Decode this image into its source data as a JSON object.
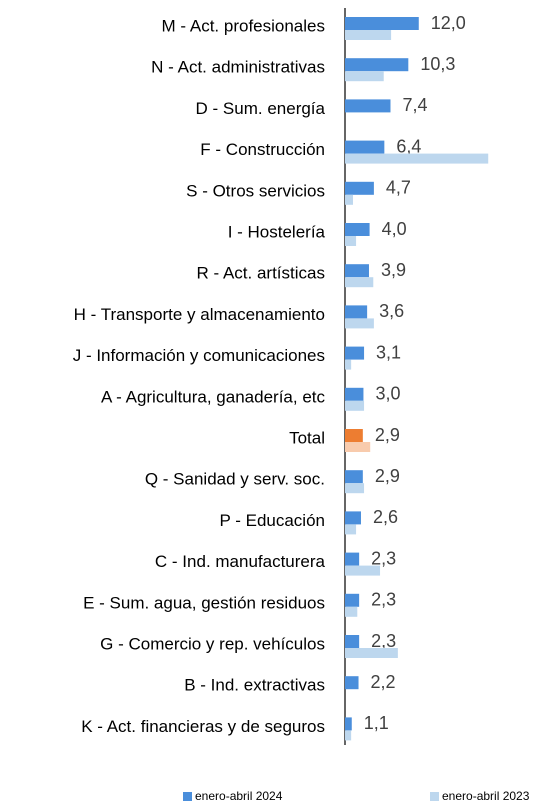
{
  "chart_data": {
    "type": "hbar",
    "categories": [
      "M - Act. profesionales",
      "N - Act. administrativas",
      "D - Sum. energía",
      "F - Construcción",
      "S - Otros servicios",
      "I - Hostelería",
      "R - Act. artísticas",
      "H - Transporte y almacenamiento",
      "J - Información y comunicaciones",
      "A - Agricultura, ganadería, etc",
      "Total",
      "Q - Sanidad y serv. soc.",
      "P - Educación",
      "C - Ind. manufacturera",
      "E - Sum. agua, gestión residuos",
      "G - Comercio y rep. vehículos",
      "B - Ind. extractivas",
      "K - Act. financieras y de seguros"
    ],
    "series": [
      {
        "name": "enero-abril 2024",
        "color": "#4a8edb",
        "highlight_color": "#ed7d31",
        "values": [
          12.0,
          10.3,
          7.4,
          6.4,
          4.7,
          4.0,
          3.9,
          3.6,
          3.1,
          3.0,
          2.9,
          2.9,
          2.6,
          2.3,
          2.3,
          2.3,
          2.2,
          1.1
        ],
        "value_labels": [
          "12,0",
          "10,3",
          "7,4",
          "6,4",
          "4,7",
          "4,0",
          "3,9",
          "3,6",
          "3,1",
          "3,0",
          "2,9",
          "2,9",
          "2,6",
          "2,3",
          "2,3",
          "2,3",
          "2,2",
          "1,1"
        ]
      },
      {
        "name": "enero-abril 2023",
        "color": "#bdd7ee",
        "highlight_color": "#f8cbad",
        "values": [
          7.5,
          6.3,
          null,
          23.3,
          1.3,
          1.8,
          4.6,
          4.7,
          1.0,
          3.1,
          4.1,
          3.1,
          1.8,
          5.7,
          2.0,
          8.6,
          null,
          1.0
        ]
      }
    ],
    "highlight": "Total",
    "xlim": [
      0,
      34
    ]
  }
}
